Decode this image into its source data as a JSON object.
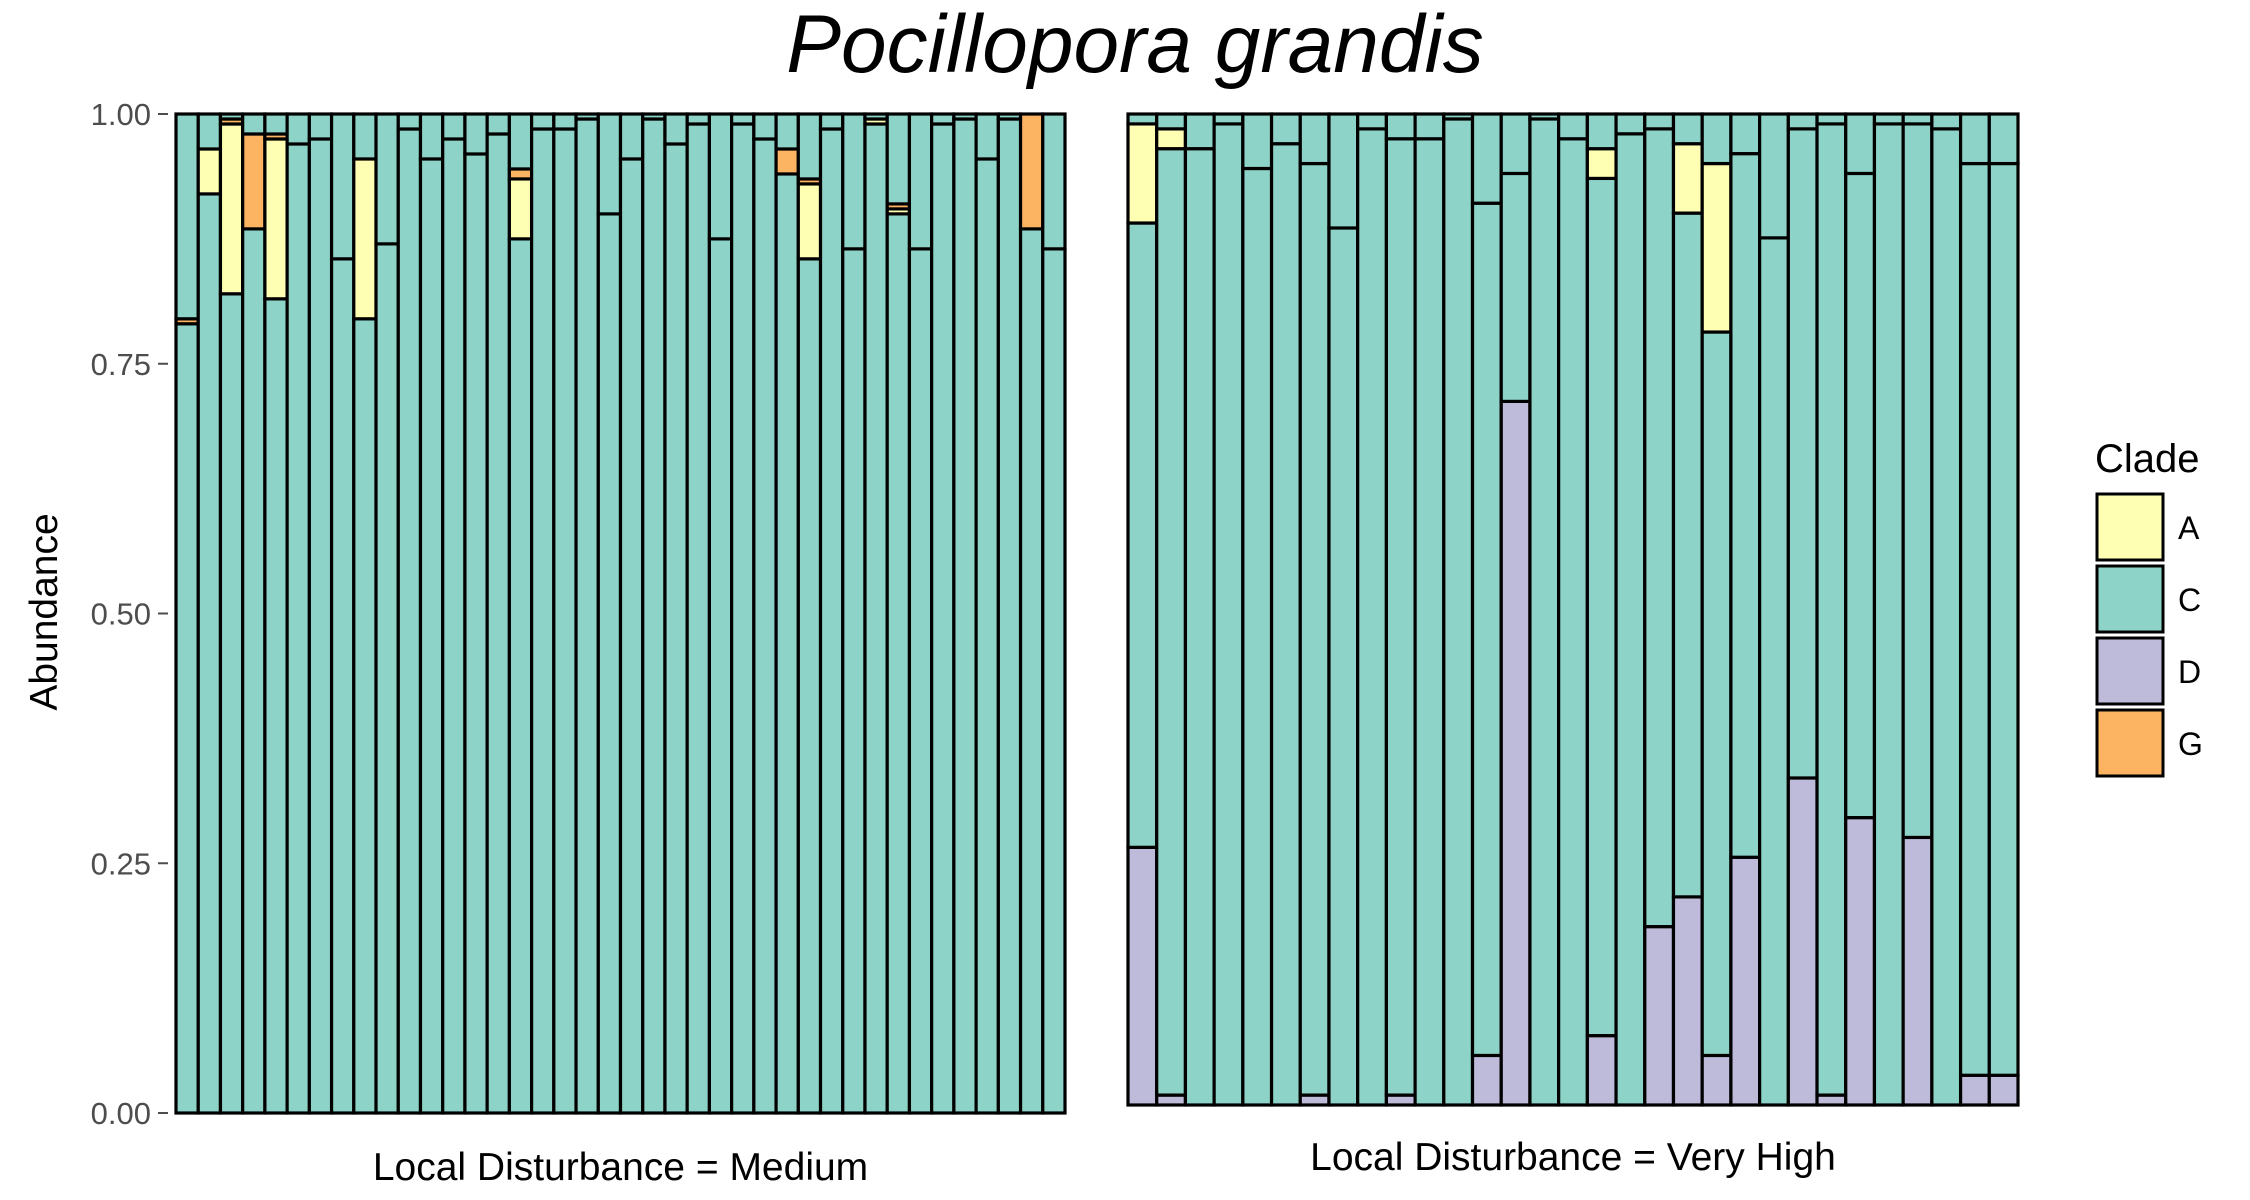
{
  "chart_data": {
    "type": "bar",
    "stacked": true,
    "title": "Pocillopora grandis",
    "ylabel": "Abundance",
    "ylim": [
      0,
      1
    ],
    "yticks": [
      "0.00",
      "0.25",
      "0.50",
      "0.75",
      "1.00"
    ],
    "grid": false,
    "legend": {
      "title": "Clade",
      "position": "right",
      "entries": [
        {
          "name": "A",
          "color": "#ffffb3"
        },
        {
          "name": "C",
          "color": "#8dd3c7"
        },
        {
          "name": "D",
          "color": "#bebada"
        },
        {
          "name": "G",
          "color": "#fdb462"
        }
      ]
    },
    "panels": [
      {
        "label": "Local Disturbance = Medium",
        "D": [
          0,
          0,
          0,
          0,
          0,
          0,
          0,
          0,
          0,
          0,
          0,
          0,
          0,
          0,
          0,
          0,
          0,
          0,
          0,
          0,
          0,
          0,
          0,
          0,
          0,
          0,
          0,
          0,
          0,
          0,
          0,
          0,
          0,
          0,
          0,
          0,
          0,
          0,
          0,
          0
        ],
        "C": [
          0.79,
          0.92,
          0.82,
          0.885,
          0.815,
          0.97,
          0.975,
          0.855,
          0.795,
          0.87,
          0.985,
          0.955,
          0.975,
          0.96,
          0.98,
          0.875,
          0.985,
          0.985,
          0.995,
          0.9,
          0.955,
          0.995,
          0.97,
          0.99,
          0.875,
          0.99,
          0.975,
          0.94,
          0.855,
          0.985,
          0.865,
          0.99,
          0.9,
          0.865,
          0.99,
          0.995,
          0.955,
          0.995,
          0.885,
          0.865
        ],
        "A": [
          0,
          0.045,
          0.17,
          0,
          0.16,
          0,
          0,
          0,
          0.16,
          0,
          0,
          0,
          0,
          0,
          0,
          0.06,
          0,
          0,
          0,
          0,
          0,
          0,
          0,
          0,
          0,
          0,
          0,
          0,
          0.075,
          0,
          0,
          0.005,
          0.005,
          0,
          0,
          0,
          0,
          0,
          0,
          0
        ],
        "G": [
          0.005,
          0,
          0.005,
          0.095,
          0.005,
          0,
          0,
          0,
          0,
          0,
          0,
          0,
          0,
          0,
          0,
          0.01,
          0,
          0,
          0,
          0,
          0,
          0,
          0,
          0,
          0,
          0,
          0,
          0.025,
          0.005,
          0,
          0,
          0,
          0.005,
          0,
          0,
          0,
          0,
          0,
          0.115,
          0
        ]
      },
      {
        "label": "Local Disturbance = Very High",
        "D": [
          0.26,
          0.01,
          0,
          0,
          0,
          0,
          0.01,
          0,
          0,
          0.01,
          0,
          0,
          0.05,
          0.71,
          0,
          0,
          0.07,
          0,
          0.18,
          0.21,
          0.05,
          0.25,
          0,
          0.33,
          0.01,
          0.29,
          0,
          0.27,
          0,
          0.03,
          0.03
        ],
        "C": [
          0.63,
          0.955,
          0.965,
          0.99,
          0.945,
          0.97,
          0.94,
          0.885,
          0.985,
          0.965,
          0.975,
          0.995,
          0.86,
          0.23,
          0.995,
          0.975,
          0.865,
          0.98,
          0.805,
          0.69,
          0.73,
          0.71,
          0.875,
          0.655,
          0.98,
          0.65,
          0.99,
          0.72,
          0.985,
          0.92,
          0.92
        ],
        "A": [
          0.1,
          0.02,
          0,
          0,
          0,
          0,
          0,
          0,
          0,
          0,
          0,
          0,
          0,
          0,
          0,
          0,
          0.03,
          0,
          0,
          0.07,
          0.17,
          0,
          0,
          0,
          0,
          0,
          0,
          0,
          0,
          0,
          0
        ],
        "G": [
          0,
          0,
          0,
          0,
          0,
          0,
          0,
          0,
          0,
          0,
          0,
          0,
          0,
          0,
          0,
          0,
          0,
          0,
          0,
          0,
          0,
          0,
          0,
          0,
          0,
          0,
          0,
          0,
          0,
          0,
          0
        ]
      }
    ]
  }
}
